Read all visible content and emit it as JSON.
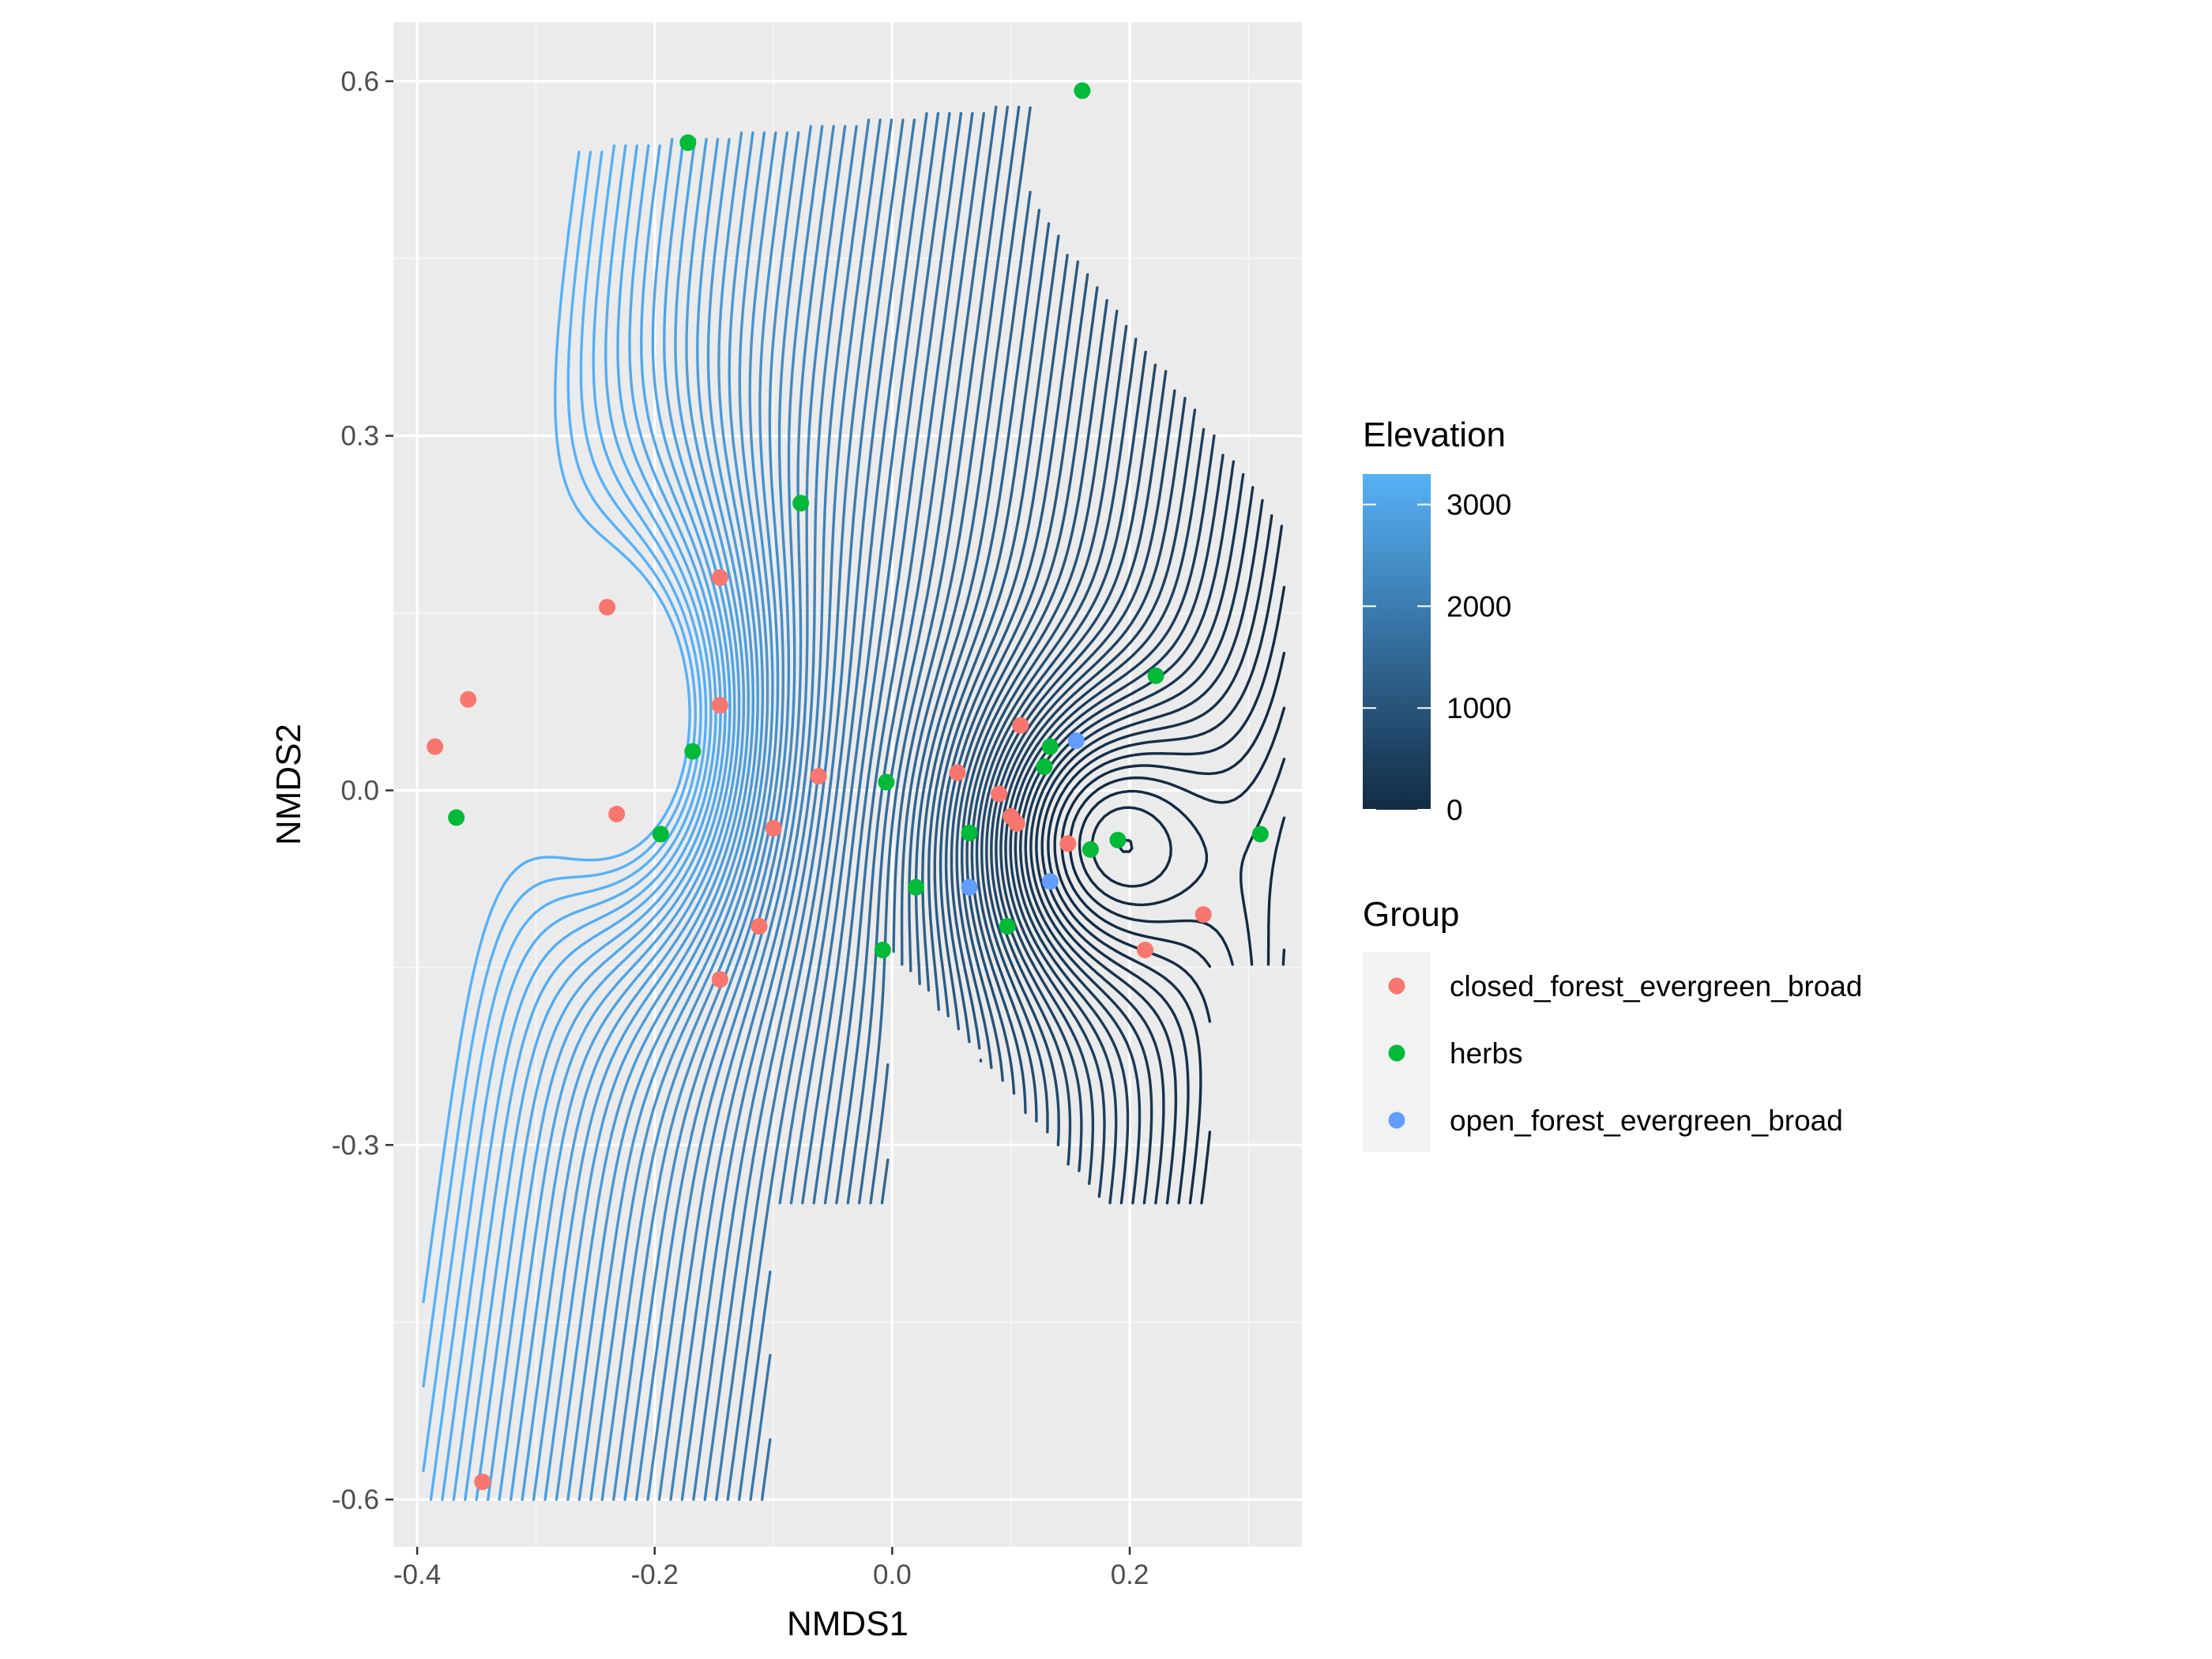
{
  "chart_data": {
    "type": "scatter",
    "xlabel": "NMDS1",
    "ylabel": "NMDS2",
    "xlim": [
      -0.42,
      0.345
    ],
    "ylim": [
      -0.64,
      0.65
    ],
    "x_ticks": [
      -0.4,
      -0.2,
      0.0,
      0.2
    ],
    "x_tick_labels": [
      "-0.4",
      "-0.2",
      "0.0",
      "0.2"
    ],
    "y_ticks": [
      -0.6,
      -0.3,
      0.0,
      0.3,
      0.6
    ],
    "y_tick_labels": [
      "-0.6",
      "-0.3",
      "0.0",
      "0.3",
      "0.6"
    ],
    "grid": true,
    "panel_background": "#ebebeb",
    "legend_position": "right",
    "contour": {
      "color_legend_title": "Elevation",
      "color_breaks": [
        0,
        1000,
        2000,
        3000
      ],
      "color_break_labels": [
        "0",
        "1000",
        "2000",
        "3000"
      ],
      "color_range": [
        0,
        3300
      ],
      "color_low": "#132b43",
      "color_high": "#56b1f7",
      "peak_center": [
        -0.2,
        0.05
      ],
      "valley_center": [
        0.16,
        -0.04
      ]
    },
    "group_legend_title": "Group",
    "series": [
      {
        "name": "closed_forest_evergreen_broad",
        "color": "#f8766d",
        "points": [
          {
            "x": -0.385,
            "y": 0.037
          },
          {
            "x": -0.357,
            "y": 0.077
          },
          {
            "x": -0.24,
            "y": 0.155
          },
          {
            "x": -0.232,
            "y": -0.02
          },
          {
            "x": -0.145,
            "y": 0.18
          },
          {
            "x": -0.145,
            "y": 0.072
          },
          {
            "x": -0.145,
            "y": -0.16
          },
          {
            "x": -0.112,
            "y": -0.115
          },
          {
            "x": -0.1,
            "y": -0.032
          },
          {
            "x": -0.062,
            "y": 0.012
          },
          {
            "x": 0.055,
            "y": 0.015
          },
          {
            "x": 0.09,
            "y": -0.003
          },
          {
            "x": 0.1,
            "y": -0.022
          },
          {
            "x": 0.105,
            "y": -0.028
          },
          {
            "x": 0.108,
            "y": 0.055
          },
          {
            "x": 0.148,
            "y": -0.045
          },
          {
            "x": 0.213,
            "y": -0.135
          },
          {
            "x": 0.262,
            "y": -0.105
          },
          {
            "x": -0.345,
            "y": -0.585
          }
        ]
      },
      {
        "name": "herbs",
        "color": "#00ba38",
        "points": [
          {
            "x": -0.172,
            "y": 0.548
          },
          {
            "x": 0.16,
            "y": 0.592
          },
          {
            "x": -0.077,
            "y": 0.243
          },
          {
            "x": 0.222,
            "y": 0.097
          },
          {
            "x": -0.367,
            "y": -0.023
          },
          {
            "x": -0.195,
            "y": -0.037
          },
          {
            "x": -0.168,
            "y": 0.033
          },
          {
            "x": -0.005,
            "y": 0.007
          },
          {
            "x": 0.02,
            "y": -0.082
          },
          {
            "x": -0.008,
            "y": -0.135
          },
          {
            "x": 0.065,
            "y": -0.036
          },
          {
            "x": 0.097,
            "y": -0.115
          },
          {
            "x": 0.128,
            "y": 0.02
          },
          {
            "x": 0.133,
            "y": 0.037
          },
          {
            "x": 0.167,
            "y": -0.05
          },
          {
            "x": 0.19,
            "y": -0.042
          },
          {
            "x": 0.31,
            "y": -0.037
          }
        ]
      },
      {
        "name": "open_forest_evergreen_broad",
        "color": "#619cff",
        "points": [
          {
            "x": 0.155,
            "y": 0.042
          },
          {
            "x": 0.065,
            "y": -0.082
          },
          {
            "x": 0.133,
            "y": -0.077
          }
        ]
      }
    ]
  }
}
